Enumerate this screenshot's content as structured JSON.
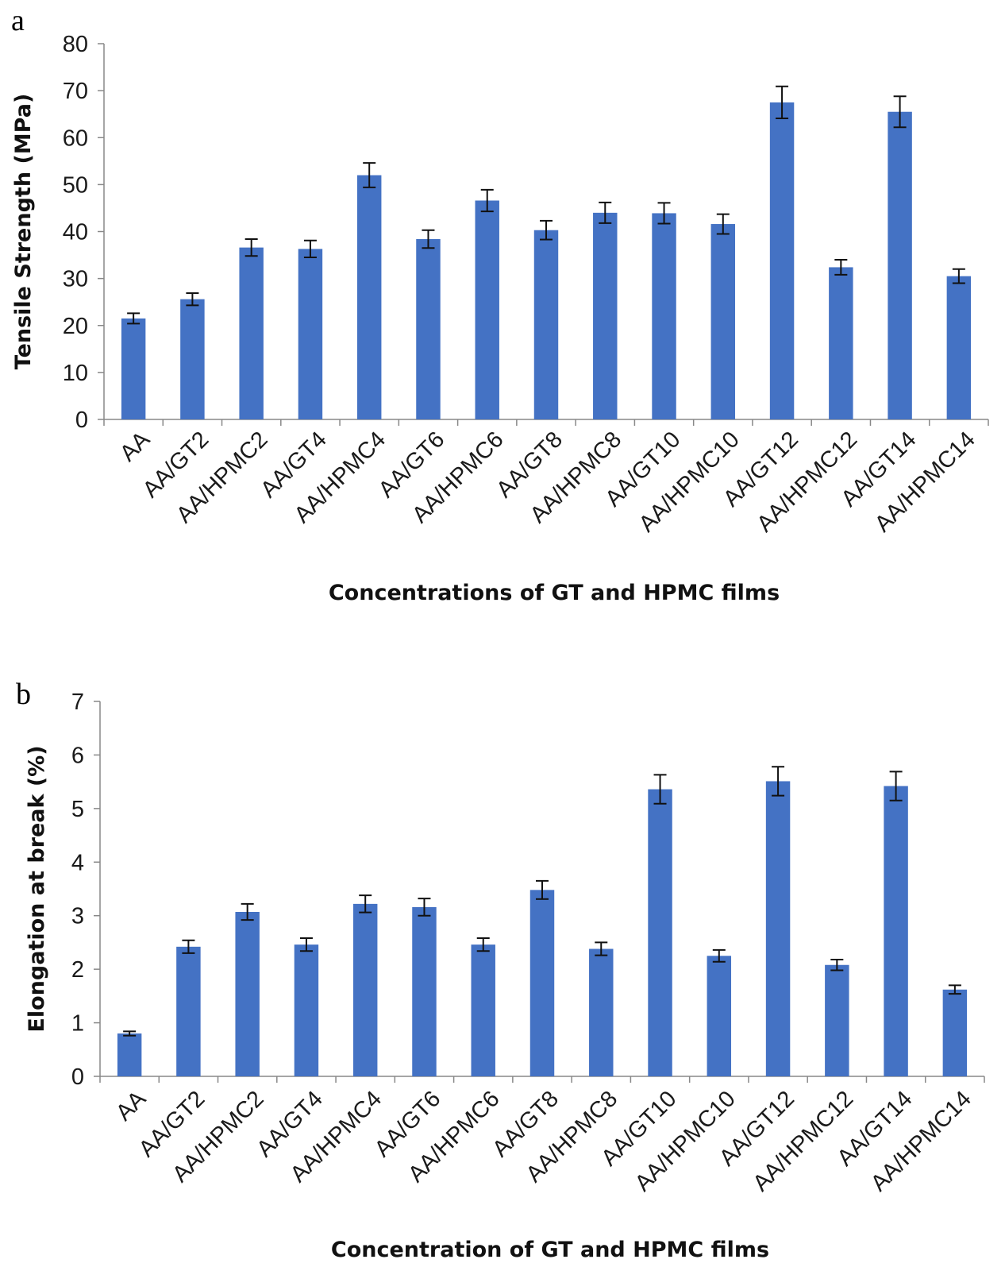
{
  "chart_data": [
    {
      "type": "bar",
      "panel": "a",
      "ylabel": "Tensile Strength (MPa)",
      "xlabel": "Concentrations of GT and HPMC films",
      "ylim": [
        0,
        80
      ],
      "ytick_step": 10,
      "grid": false,
      "legend": "none",
      "color": "#4472C4",
      "categories": [
        "AA",
        "AA/GT2",
        "AA/HPMC2",
        "AA/GT4",
        "AA/HPMC4",
        "AA/GT6",
        "AA/HPMC6",
        "AA/GT8",
        "AA/HPMC8",
        "AA/GT10",
        "AA/HPMC10",
        "AA/GT12",
        "AA/HPMC12",
        "AA/GT14",
        "AA/HPMC14"
      ],
      "values": [
        21.5,
        25.6,
        36.6,
        36.3,
        52.0,
        38.4,
        46.6,
        40.3,
        44.0,
        43.9,
        41.6,
        67.5,
        32.4,
        65.5,
        30.5
      ],
      "errors": [
        1.1,
        1.3,
        1.8,
        1.8,
        2.6,
        1.9,
        2.3,
        2.0,
        2.2,
        2.2,
        2.1,
        3.4,
        1.6,
        3.3,
        1.5
      ]
    },
    {
      "type": "bar",
      "panel": "b",
      "ylabel": "Elongation at break (%)",
      "xlabel": "Concentration of GT and HPMC films",
      "ylim": [
        0,
        7
      ],
      "ytick_step": 1,
      "grid": false,
      "legend": "none",
      "color": "#4472C4",
      "categories": [
        "AA",
        "AA/GT2",
        "AA/HPMC2",
        "AA/GT4",
        "AA/HPMC4",
        "AA/GT6",
        "AA/HPMC6",
        "AA/GT8",
        "AA/HPMC8",
        "AA/GT10",
        "AA/HPMC10",
        "AA/GT12",
        "AA/HPMC12",
        "AA/GT14",
        "AA/HPMC14"
      ],
      "values": [
        0.8,
        2.42,
        3.07,
        2.46,
        3.22,
        3.16,
        2.46,
        3.48,
        2.38,
        5.36,
        2.25,
        5.51,
        2.08,
        5.42,
        1.62
      ],
      "errors": [
        0.04,
        0.12,
        0.15,
        0.12,
        0.16,
        0.16,
        0.12,
        0.17,
        0.12,
        0.27,
        0.11,
        0.27,
        0.1,
        0.27,
        0.08
      ]
    }
  ]
}
